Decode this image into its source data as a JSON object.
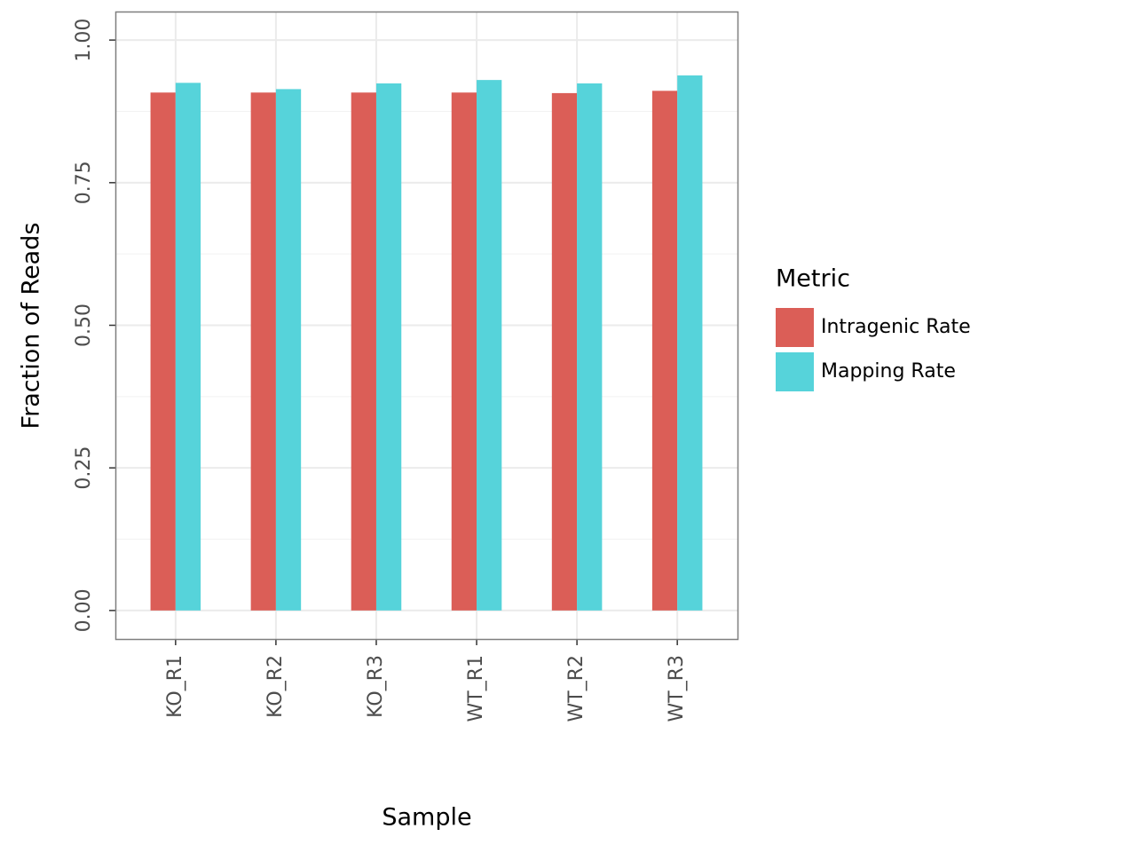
{
  "chart_data": {
    "type": "bar",
    "x_label": "Sample",
    "y_label": "Fraction of Reads",
    "categories": [
      "KO_R1",
      "KO_R2",
      "KO_R3",
      "WT_R1",
      "WT_R2",
      "WT_R3"
    ],
    "series": [
      {
        "name": "Intragenic Rate",
        "color": "#db5e57",
        "values": [
          0.908,
          0.908,
          0.908,
          0.908,
          0.907,
          0.911
        ]
      },
      {
        "name": "Mapping Rate",
        "color": "#56d3da",
        "values": [
          0.925,
          0.914,
          0.924,
          0.93,
          0.924,
          0.938
        ]
      }
    ],
    "ylim": [
      -0.05,
      1.05
    ],
    "yticks": [
      {
        "value": 0,
        "label": "0.00"
      },
      {
        "value": 0.25,
        "label": "0.25"
      },
      {
        "value": 0.5,
        "label": "0.50"
      },
      {
        "value": 0.75,
        "label": "0.75"
      },
      {
        "value": 1,
        "label": "1.00"
      }
    ],
    "grid": true,
    "minor_grid": true,
    "legend_title": "Metric",
    "legend_position": "right"
  }
}
